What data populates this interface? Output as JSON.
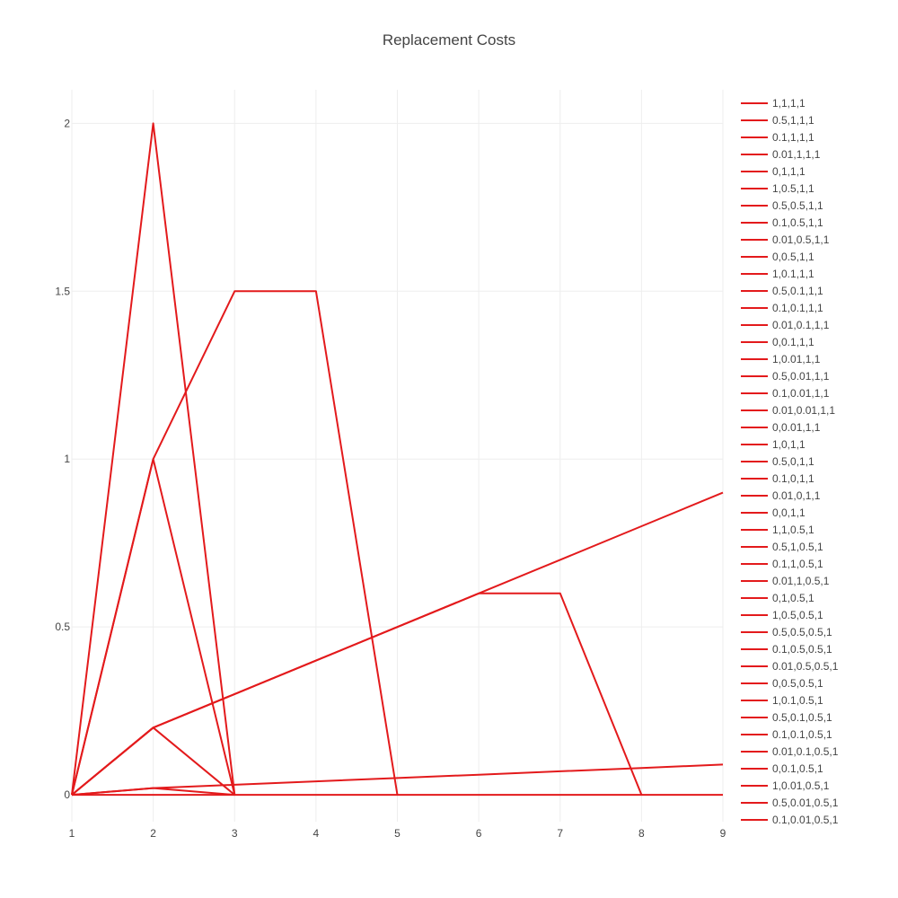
{
  "chart_data": {
    "type": "line",
    "title": "Replacement Costs",
    "xlabel": "",
    "ylabel": "",
    "xlim": [
      1,
      9
    ],
    "ylim": [
      -0.08,
      2.1
    ],
    "xticks": [
      1,
      2,
      3,
      4,
      5,
      6,
      7,
      8,
      9
    ],
    "yticks": [
      0,
      0.5,
      1,
      1.5,
      2
    ],
    "ytick_labels": [
      "0",
      "0.5",
      "1",
      "1.5",
      "2"
    ],
    "grid": true,
    "legend_position": "right",
    "line_color": "#e31a1c",
    "line_profiles": [
      {
        "x": [
          1,
          2,
          3
        ],
        "y": [
          0,
          2,
          0
        ]
      },
      {
        "x": [
          1,
          2,
          3,
          4,
          5
        ],
        "y": [
          0,
          1,
          1.5,
          1.5,
          0
        ]
      },
      {
        "x": [
          1,
          2,
          3
        ],
        "y": [
          0,
          1,
          0
        ]
      },
      {
        "x": [
          1,
          2,
          3,
          4,
          5,
          6,
          7,
          8
        ],
        "y": [
          0,
          0.2,
          0.3,
          0.4,
          0.5,
          0.6,
          0.6,
          0
        ]
      },
      {
        "x": [
          1,
          2,
          3
        ],
        "y": [
          0,
          0.2,
          0
        ]
      },
      {
        "x": [
          1,
          2,
          3,
          4,
          5,
          6,
          7,
          8,
          9
        ],
        "y": [
          0,
          0.2,
          0.3,
          0.4,
          0.5,
          0.6,
          0.7,
          0.8,
          0.9
        ]
      },
      {
        "x": [
          1,
          2,
          3,
          4,
          5,
          6,
          7,
          8,
          9
        ],
        "y": [
          0,
          0.02,
          0.03,
          0.04,
          0.05,
          0.06,
          0.07,
          0.08,
          0.09
        ]
      },
      {
        "x": [
          1,
          2,
          3
        ],
        "y": [
          0,
          0.02,
          0
        ]
      },
      {
        "x": [
          1,
          9
        ],
        "y": [
          0,
          0
        ]
      }
    ],
    "series_names": [
      "1,1,1,1",
      "0.5,1,1,1",
      "0.1,1,1,1",
      "0.01,1,1,1",
      "0,1,1,1",
      "1,0.5,1,1",
      "0.5,0.5,1,1",
      "0.1,0.5,1,1",
      "0.01,0.5,1,1",
      "0,0.5,1,1",
      "1,0.1,1,1",
      "0.5,0.1,1,1",
      "0.1,0.1,1,1",
      "0.01,0.1,1,1",
      "0,0.1,1,1",
      "1,0.01,1,1",
      "0.5,0.01,1,1",
      "0.1,0.01,1,1",
      "0.01,0.01,1,1",
      "0,0.01,1,1",
      "1,0,1,1",
      "0.5,0,1,1",
      "0.1,0,1,1",
      "0.01,0,1,1",
      "0,0,1,1",
      "1,1,0.5,1",
      "0.5,1,0.5,1",
      "0.1,1,0.5,1",
      "0.01,1,0.5,1",
      "0,1,0.5,1",
      "1,0.5,0.5,1",
      "0.5,0.5,0.5,1",
      "0.1,0.5,0.5,1",
      "0.01,0.5,0.5,1",
      "0,0.5,0.5,1",
      "1,0.1,0.5,1",
      "0.5,0.1,0.5,1",
      "0.1,0.1,0.5,1",
      "0.01,0.1,0.5,1",
      "0,0.1,0.5,1",
      "1,0.01,0.5,1",
      "0.5,0.01,0.5,1",
      "0.1,0.01,0.5,1"
    ]
  }
}
